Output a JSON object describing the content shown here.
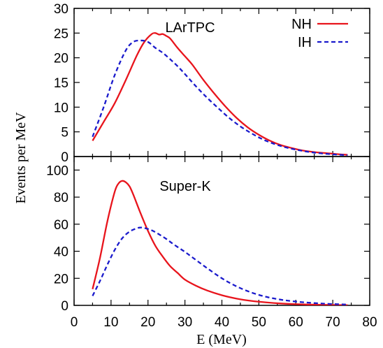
{
  "chart_data": {
    "type": "line",
    "ylabel": "Events per MeV",
    "xlabel": "E (MeV)",
    "xlim": [
      0,
      80
    ],
    "xticks": [
      0,
      10,
      20,
      30,
      40,
      50,
      60,
      70,
      80
    ],
    "legend": {
      "placement": "top-right",
      "entries": [
        "NH",
        "IH"
      ]
    },
    "colors": {
      "NH": "#e8141c",
      "IH": "#1a1acc"
    },
    "grid": false,
    "panels": [
      {
        "label": "LArTPC",
        "ylim": [
          0,
          30
        ],
        "yticks": [
          0,
          5,
          10,
          15,
          20,
          25,
          30
        ],
        "series": [
          {
            "name": "NH",
            "style": "solid",
            "x": [
              5,
              8,
              11,
              14,
              17,
              19,
              21,
              22,
              23,
              24,
              25,
              26,
              28,
              30,
              32,
              35,
              38,
              41,
              44,
              47,
              50,
              53,
              56,
              59,
              62,
              65,
              68,
              71,
              74
            ],
            "y": [
              3.2,
              7,
              10.8,
              15.5,
              20.5,
              23.2,
              24.8,
              25,
              24.7,
              24.8,
              24.4,
              23.9,
              22,
              20.3,
              18.6,
              15.5,
              12.7,
              10.1,
              7.8,
              5.9,
              4.4,
              3.2,
              2.3,
              1.7,
              1.2,
              0.9,
              0.7,
              0.5,
              0.35
            ]
          },
          {
            "name": "IH",
            "style": "dashed",
            "x": [
              5,
              8,
              11,
              14,
              16,
              18,
              20,
              22,
              24,
              26,
              28,
              30,
              33,
              36,
              39,
              42,
              45,
              48,
              51,
              54,
              57,
              60,
              63,
              66,
              69,
              72,
              74
            ],
            "y": [
              4,
              10,
              16.5,
              21.5,
              23.2,
              23.5,
              23.2,
              22,
              21,
              19.7,
              18.3,
              16.7,
              14.2,
              11.9,
              9.8,
              7.8,
              6.1,
              4.7,
              3.5,
              2.6,
              1.9,
              1.4,
              1.0,
              0.7,
              0.5,
              0.35,
              0.28
            ]
          }
        ]
      },
      {
        "label": "Super-K",
        "ylim": [
          0,
          110
        ],
        "yticks": [
          0,
          20,
          40,
          60,
          80,
          100
        ],
        "series": [
          {
            "name": "NH",
            "style": "solid",
            "x": [
              5,
              7,
              9,
              11,
              12,
              13,
              14,
              15,
              16,
              18,
              20,
              22,
              24,
              26,
              28,
              30,
              33,
              36,
              40,
              44,
              48,
              52,
              56,
              60,
              65,
              70,
              74
            ],
            "y": [
              12,
              35,
              62,
              84,
              90,
              92,
              91,
              88,
              82,
              68,
              55,
              44,
              36,
              29,
              24,
              19,
              14.5,
              11,
              7.5,
              5,
              3.3,
              2.2,
              1.4,
              0.9,
              0.5,
              0.3,
              0.2
            ]
          },
          {
            "name": "IH",
            "style": "dashed",
            "x": [
              5,
              7,
              9,
              11,
              13,
              15,
              17,
              18,
              19,
              21,
              23,
              25,
              27,
              30,
              33,
              36,
              40,
              44,
              48,
              52,
              56,
              60,
              64,
              68,
              72,
              74
            ],
            "y": [
              7,
              18,
              30,
              41,
              49.5,
              54.5,
              57,
              57.5,
              57.2,
              55.5,
              52.5,
              49,
              45,
              39.5,
              33.5,
              27.5,
              20,
              14,
              9.5,
              6.3,
              4.2,
              2.8,
              1.9,
              1.2,
              0.8,
              0.6
            ]
          }
        ]
      }
    ]
  }
}
